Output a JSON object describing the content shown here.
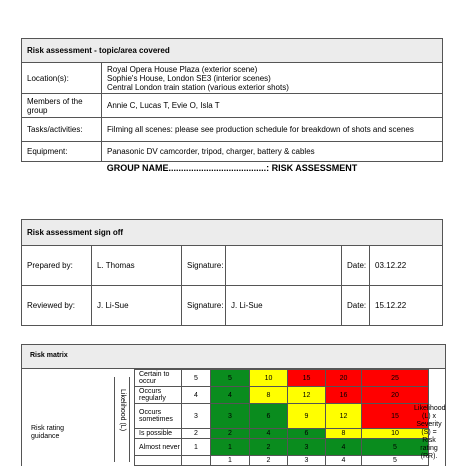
{
  "topic": {
    "title": "Risk assessment - topic/area covered",
    "rows": [
      {
        "label": "Location(s):",
        "lines": [
          "Royal Opera House Plaza (exterior scene)",
          "Sophie's House, London SE3 (interior scenes)",
          "Central London train station (various exterior shots)"
        ]
      },
      {
        "label": "Members of the group",
        "lines": [
          "Annie C, Lucas T, Evie O, Isla T"
        ]
      },
      {
        "label": "Tasks/activities:",
        "lines": [
          "Filming all scenes: please see production schedule for breakdown of shots and scenes"
        ]
      },
      {
        "label": "Equipment:",
        "lines": [
          "Panasonic DV camcorder, tripod, charger, battery & cables"
        ]
      }
    ]
  },
  "group_heading": "GROUP NAME.......................................: RISK ASSESSMENT",
  "signoff": {
    "title": "Risk assessment sign off",
    "prepared_label": "Prepared by:",
    "prepared_name": "L. Thomas",
    "signature_label": "Signature:",
    "prepared_signature": "",
    "date_label": "Date:",
    "prepared_date": "03.12.22",
    "reviewed_label": "Reviewed by:",
    "reviewed_name": "J. Li-Sue",
    "reviewed_signature": "J. Li-Sue",
    "reviewed_date": "15.12.22"
  },
  "risk_matrix": {
    "title": "Risk matrix",
    "guidance": "Risk rating guidance",
    "likelihood_axis": "Likelihood (L)",
    "right_note": "Likelihood (L) x Severity (S) = Risk rating (RR).",
    "rows": [
      {
        "label": "Certain to occur",
        "l": "5",
        "cells": [
          "5",
          "10",
          "15",
          "20",
          "25"
        ]
      },
      {
        "label": "Occurs regularly",
        "l": "4",
        "cells": [
          "4",
          "8",
          "12",
          "16",
          "20"
        ]
      },
      {
        "label": "Occurs sometimes",
        "l": "3",
        "cells": [
          "3",
          "6",
          "9",
          "12",
          "15"
        ]
      },
      {
        "label": "Is possible",
        "l": "2",
        "cells": [
          "2",
          "4",
          "6",
          "8",
          "10"
        ]
      },
      {
        "label": "Almost never",
        "l": "1",
        "cells": [
          "1",
          "2",
          "3",
          "4",
          "5"
        ]
      }
    ],
    "severity_header": [
      "1",
      "2",
      "3",
      "4",
      "5"
    ],
    "colors": {
      "green": "#0a8c1e",
      "yellow": "#ffff00",
      "red": "#ff0000"
    }
  }
}
